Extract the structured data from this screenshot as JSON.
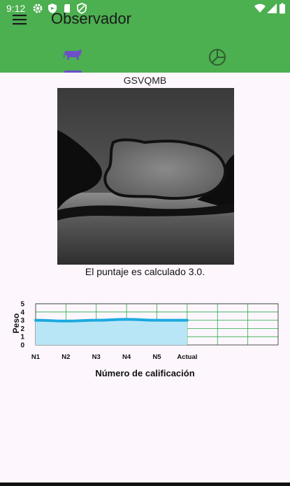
{
  "status_bar": {
    "time": "9:12",
    "left_icons": [
      "settings-icon",
      "shield-icon",
      "sd-card-icon",
      "shield-check-icon"
    ],
    "right_icons": [
      "wifi-icon",
      "signal-icon",
      "battery-icon"
    ]
  },
  "app_bar": {
    "title": "Observador",
    "menu_icon": "menu-icon",
    "accent": "#4caf50"
  },
  "tabs": [
    {
      "icon": "cow-icon",
      "selected": true
    },
    {
      "icon": "pie-chart-icon",
      "selected": false
    }
  ],
  "observation": {
    "code": "GSVQMB",
    "score_text": "El puntaje es calculado 3.0."
  },
  "chart_data": {
    "type": "area",
    "categories": [
      "N1",
      "N2",
      "N3",
      "N4",
      "N5",
      "Actual"
    ],
    "values": [
      3.0,
      2.9,
      3.0,
      3.1,
      3.0,
      3.0
    ],
    "ylabel": "Peso",
    "xlabel": "Número de calificación",
    "ylim": [
      0,
      5
    ],
    "yticks": [
      0,
      1,
      2,
      3,
      4,
      5
    ],
    "grid": true,
    "line_color": "#1da9e0",
    "fill_color": "#b9e6f7",
    "grid_color": "#2aa84a"
  }
}
